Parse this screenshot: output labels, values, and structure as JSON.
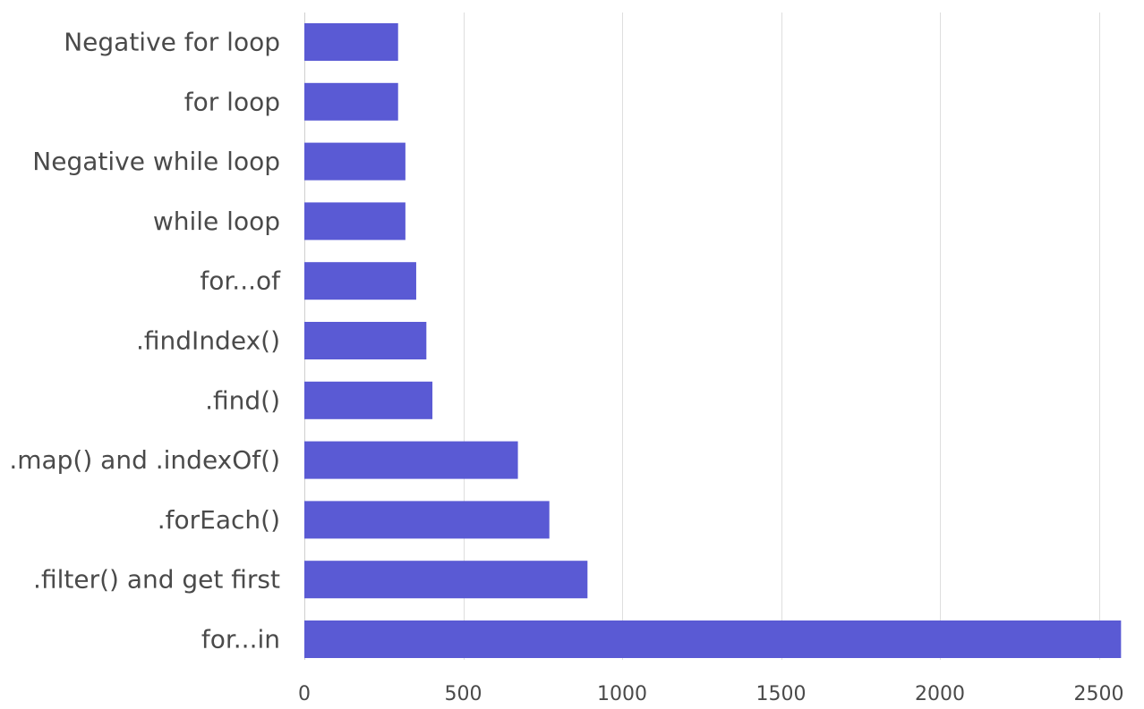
{
  "chart_data": {
    "type": "bar",
    "orientation": "horizontal",
    "categories": [
      "Negative for loop",
      "for loop",
      "Negative while loop",
      "while loop",
      "for...of",
      ".findIndex()",
      ".find()",
      ".map() and .indexOf()",
      ".forEach()",
      ".filter() and get first",
      "for...in"
    ],
    "values": [
      295,
      295,
      318,
      318,
      352,
      384,
      403,
      672,
      771,
      891,
      2570
    ],
    "xlim": [
      0,
      2600
    ],
    "xticks": [
      0,
      500,
      1000,
      1500,
      2000,
      2500
    ],
    "tick_labels": [
      "0",
      "500",
      "1000",
      "1500",
      "2000",
      "2500"
    ],
    "bar_color": "#5a5ad4",
    "grid": true,
    "legend": "none"
  }
}
